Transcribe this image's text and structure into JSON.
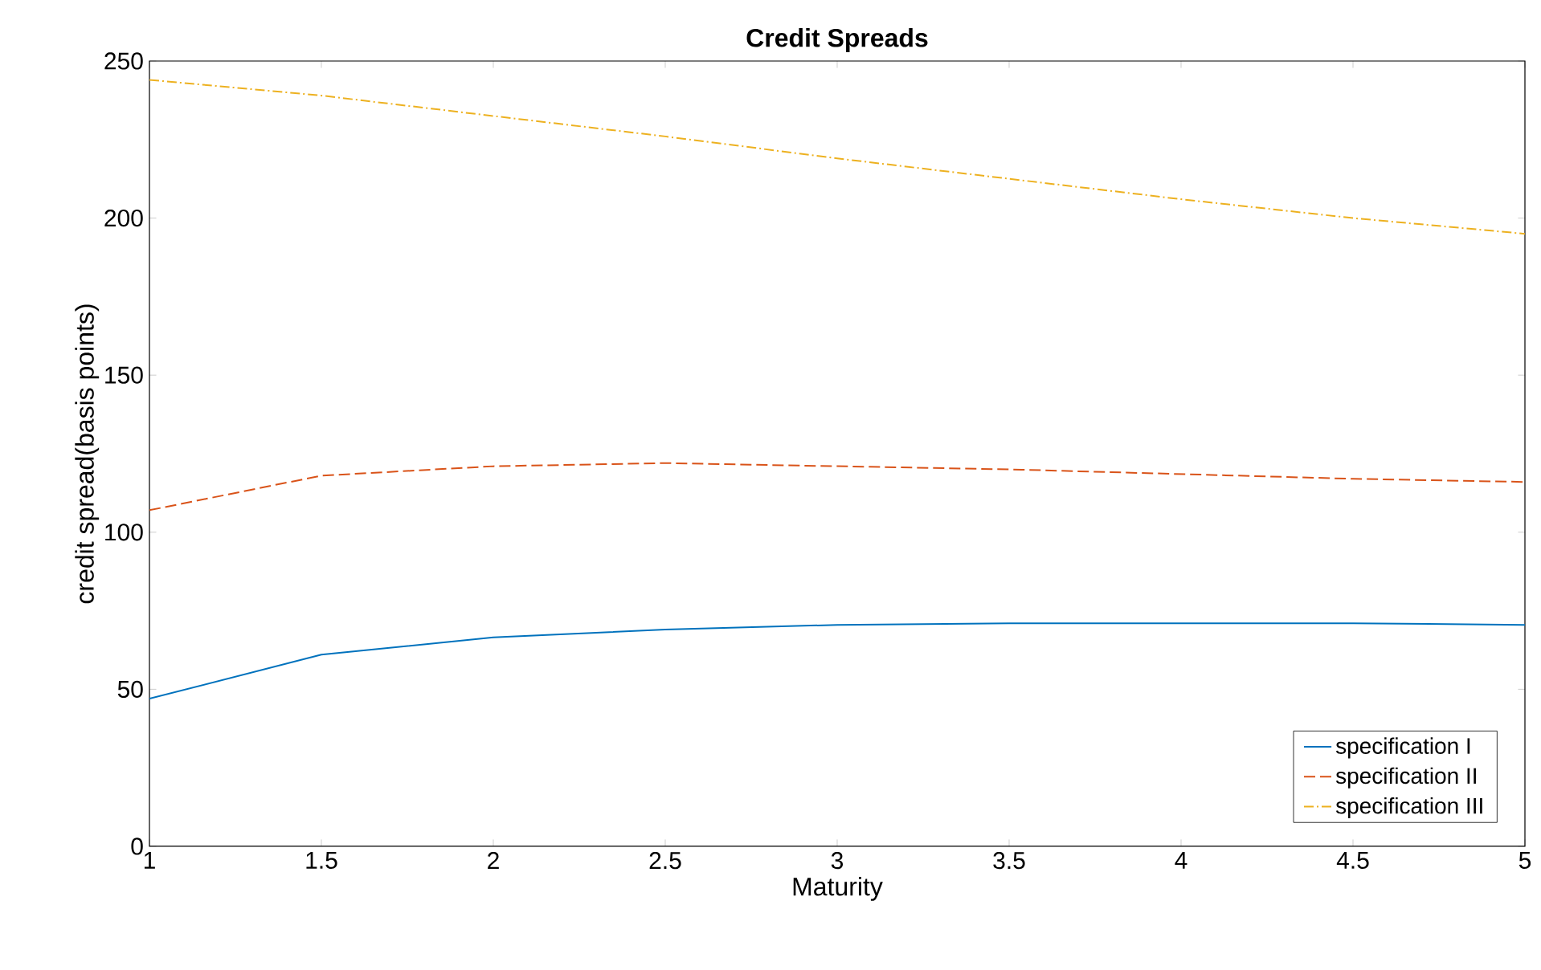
{
  "chart_data": {
    "type": "line",
    "title": "Credit Spreads",
    "xlabel": "Maturity",
    "ylabel": "credit spread(basis points)",
    "x": [
      1,
      1.5,
      2,
      2.5,
      3,
      3.5,
      4,
      4.5,
      5
    ],
    "series": [
      {
        "name": "specification I",
        "color": "#0072bd",
        "line_style": "solid",
        "values": [
          47,
          61,
          66.5,
          69,
          70.5,
          71,
          71,
          71,
          70.5
        ]
      },
      {
        "name": "specification II",
        "color": "#d95319",
        "line_style": "dashed",
        "values": [
          107,
          118,
          121,
          122,
          121,
          120,
          118.5,
          117,
          116
        ]
      },
      {
        "name": "specification III",
        "color": "#edb120",
        "line_style": "dashdot",
        "values": [
          244,
          239,
          232.5,
          226,
          219,
          212.5,
          206,
          200,
          195
        ]
      }
    ],
    "xlim": [
      1,
      5
    ],
    "ylim": [
      0,
      250
    ],
    "xticks": [
      1,
      1.5,
      2,
      2.5,
      3,
      3.5,
      4,
      4.5,
      5
    ],
    "yticks": [
      0,
      50,
      100,
      150,
      200,
      250
    ],
    "grid": false,
    "legend": "bottom right",
    "marker": "none"
  }
}
